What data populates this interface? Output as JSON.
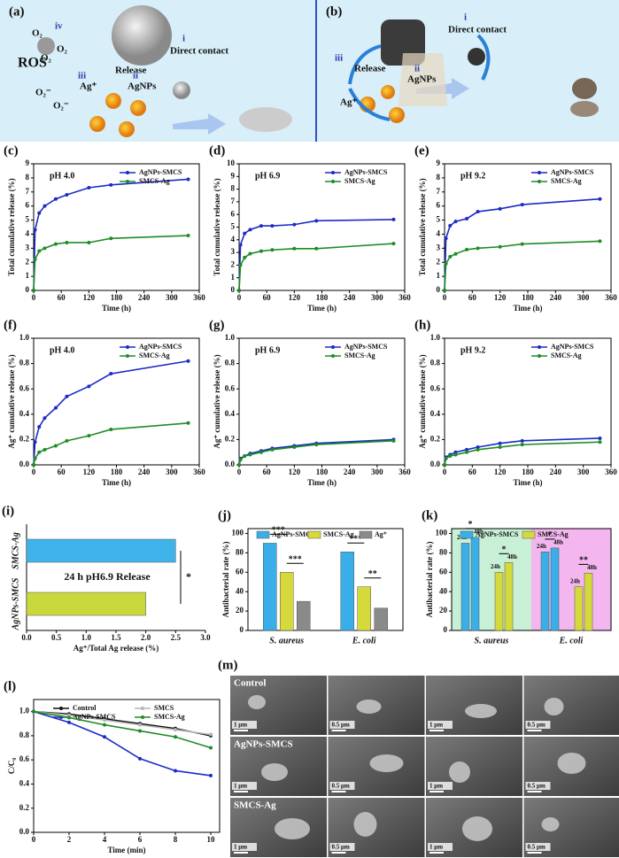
{
  "schematic": {
    "a": {
      "label": "(a)",
      "iv": "iv",
      "o2": "O₂",
      "o2r": "O₂⁻",
      "ros": "ROS",
      "release": "Release",
      "i": "i",
      "direct": "Direct contact",
      "ii": "ii",
      "agnps": "AgNPs",
      "iii": "iii",
      "agp": "Ag⁺"
    },
    "b": {
      "label": "(b)",
      "i": "i",
      "direct": "Direct contact",
      "release": "Release",
      "iii": "iii",
      "ii": "ii",
      "agnps": "AgNPs",
      "agp": "Ag⁺"
    }
  },
  "chart_data": [
    {
      "type": "line",
      "panel_label": "(c)",
      "annotation": "pH 4.0",
      "xlabel": "Time (h)",
      "ylabel": "Total cumulative release (%)",
      "x": [
        0,
        3,
        12,
        24,
        48,
        72,
        120,
        168,
        336
      ],
      "xlim": [
        0,
        360
      ],
      "xticks": [
        0,
        60,
        120,
        180,
        240,
        300,
        360
      ],
      "ylim": [
        0,
        9
      ],
      "yticks": [
        0,
        1,
        2,
        3,
        4,
        5,
        6,
        7,
        8,
        9
      ],
      "legend": "upper right",
      "series": [
        {
          "name": "AgNPs-SMCS",
          "color": "#1c2bc4",
          "values": [
            0,
            4.3,
            5.5,
            6.0,
            6.5,
            6.8,
            7.3,
            7.5,
            7.9
          ]
        },
        {
          "name": "SMCS-Ag",
          "color": "#1e8c24",
          "values": [
            0,
            2.2,
            2.8,
            3.0,
            3.3,
            3.4,
            3.4,
            3.7,
            3.9
          ]
        }
      ]
    },
    {
      "type": "line",
      "panel_label": "(d)",
      "annotation": "pH 6.9",
      "xlabel": "Time (h)",
      "ylabel": "Total cumulative release (%)",
      "x": [
        0,
        3,
        12,
        24,
        48,
        72,
        120,
        168,
        336
      ],
      "xlim": [
        0,
        360
      ],
      "xticks": [
        0,
        60,
        120,
        180,
        240,
        300,
        360
      ],
      "ylim": [
        0,
        10
      ],
      "yticks": [
        0,
        1,
        2,
        3,
        4,
        5,
        6,
        7,
        8,
        9,
        10
      ],
      "legend": "upper right",
      "series": [
        {
          "name": "AgNPs-SMCS",
          "color": "#1c2bc4",
          "values": [
            0,
            3.6,
            4.5,
            4.8,
            5.1,
            5.1,
            5.2,
            5.5,
            5.6
          ]
        },
        {
          "name": "SMCS-Ag",
          "color": "#1e8c24",
          "values": [
            0,
            2.0,
            2.6,
            2.9,
            3.1,
            3.2,
            3.3,
            3.3,
            3.7
          ]
        }
      ]
    },
    {
      "type": "line",
      "panel_label": "(e)",
      "annotation": "pH 9.2",
      "xlabel": "Time (h)",
      "ylabel": "Total cumulative release (%)",
      "x": [
        0,
        3,
        12,
        24,
        48,
        72,
        120,
        168,
        336
      ],
      "xlim": [
        0,
        360
      ],
      "xticks": [
        0,
        60,
        120,
        180,
        240,
        300,
        360
      ],
      "ylim": [
        0,
        9
      ],
      "yticks": [
        0,
        1,
        2,
        3,
        4,
        5,
        6,
        7,
        8,
        9
      ],
      "legend": "upper right",
      "series": [
        {
          "name": "AgNPs-SMCS",
          "color": "#1c2bc4",
          "values": [
            0,
            3.7,
            4.6,
            4.9,
            5.1,
            5.6,
            5.8,
            6.1,
            6.5
          ]
        },
        {
          "name": "SMCS-Ag",
          "color": "#1e8c24",
          "values": [
            0,
            1.9,
            2.4,
            2.6,
            2.9,
            3.0,
            3.1,
            3.3,
            3.5
          ]
        }
      ]
    },
    {
      "type": "line",
      "panel_label": "(f)",
      "annotation": "pH 4.0",
      "xlabel": "Time (h)",
      "ylabel": "Ag⁺ cumulative release (%)",
      "x": [
        0,
        3,
        12,
        24,
        48,
        72,
        120,
        168,
        336
      ],
      "xlim": [
        0,
        360
      ],
      "xticks": [
        0,
        60,
        120,
        180,
        240,
        300,
        360
      ],
      "ylim": [
        0,
        1
      ],
      "yticks": [
        {
          "value": 0,
          "label": "0.0"
        },
        0.2,
        0.4,
        0.6,
        0.8,
        {
          "value": 1,
          "label": "1.0"
        }
      ],
      "legend": "upper right",
      "series": [
        {
          "name": "AgNPs-SMCS",
          "color": "#1c2bc4",
          "values": [
            0,
            0.18,
            0.3,
            0.37,
            0.45,
            0.54,
            0.62,
            0.72,
            0.82
          ]
        },
        {
          "name": "SMCS-Ag",
          "color": "#1e8c24",
          "values": [
            0,
            0.05,
            0.1,
            0.12,
            0.15,
            0.19,
            0.23,
            0.28,
            0.33
          ]
        }
      ]
    },
    {
      "type": "line",
      "panel_label": "(g)",
      "annotation": "pH 6.9",
      "xlabel": "Time (h)",
      "ylabel": "Ag⁺ cumulative release (%)",
      "x": [
        0,
        3,
        12,
        24,
        48,
        72,
        120,
        168,
        336
      ],
      "xlim": [
        0,
        360
      ],
      "xticks": [
        0,
        60,
        120,
        180,
        240,
        300,
        360
      ],
      "ylim": [
        0,
        1
      ],
      "yticks": [
        {
          "value": 0,
          "label": "0.0"
        },
        0.2,
        0.4,
        0.6,
        0.8,
        {
          "value": 1,
          "label": "1.0"
        }
      ],
      "legend": "upper right",
      "series": [
        {
          "name": "AgNPs-SMCS",
          "color": "#1c2bc4",
          "values": [
            0,
            0.05,
            0.07,
            0.09,
            0.11,
            0.13,
            0.15,
            0.17,
            0.2
          ]
        },
        {
          "name": "SMCS-Ag",
          "color": "#1e8c24",
          "values": [
            0,
            0.04,
            0.07,
            0.08,
            0.1,
            0.12,
            0.14,
            0.16,
            0.19
          ]
        }
      ]
    },
    {
      "type": "line",
      "panel_label": "(h)",
      "annotation": "pH 9.2",
      "xlabel": "Time (h)",
      "ylabel": "Ag⁺ cumulative release (%)",
      "x": [
        0,
        3,
        12,
        24,
        48,
        72,
        120,
        168,
        336
      ],
      "xlim": [
        0,
        360
      ],
      "xticks": [
        0,
        60,
        120,
        180,
        240,
        300,
        360
      ],
      "ylim": [
        0,
        1
      ],
      "yticks": [
        {
          "value": 0,
          "label": "0.0"
        },
        0.2,
        0.4,
        0.6,
        0.8,
        {
          "value": 1,
          "label": "1.0"
        }
      ],
      "legend": "upper right",
      "series": [
        {
          "name": "AgNPs-SMCS",
          "color": "#1c2bc4",
          "values": [
            0,
            0.06,
            0.08,
            0.1,
            0.12,
            0.14,
            0.17,
            0.19,
            0.21
          ]
        },
        {
          "name": "SMCS-Ag",
          "color": "#1e8c24",
          "values": [
            0,
            0.05,
            0.07,
            0.08,
            0.1,
            0.12,
            0.14,
            0.16,
            0.18
          ]
        }
      ]
    },
    {
      "type": "barh",
      "panel_label": "(i)",
      "annotations": [
        "24 h  pH6.9 Release",
        "*"
      ],
      "xlabel": "Ag⁺/Total Ag release (%)",
      "categories": [
        "SMCS-Ag",
        "AgNPs-SMCS"
      ],
      "values": [
        2.5,
        2.0
      ],
      "colors": [
        "#3fb4ea",
        "#c9d83c"
      ],
      "xlim": [
        0,
        3
      ],
      "xticks": [
        {
          "value": 0,
          "label": "0.0"
        },
        0.5,
        {
          "value": 1,
          "label": "1.0"
        },
        1.5,
        {
          "value": 2,
          "label": "2.0"
        },
        2.5,
        {
          "value": 3,
          "label": "3.0"
        }
      ]
    },
    {
      "type": "bar",
      "panel_label": "(j)",
      "ylabel": "Antibacterial rate (%)",
      "annotations": [
        "***",
        "***",
        "***",
        "**"
      ],
      "categories": [
        "S. aureus",
        "E. coli"
      ],
      "ylim": [
        0,
        105
      ],
      "yticks": [
        0,
        20,
        40,
        60,
        80,
        100
      ],
      "legend": "upper",
      "series": [
        {
          "name": "AgNPs-SMCS",
          "color": "#3aaee8",
          "values": [
            90,
            81
          ]
        },
        {
          "name": "SMCS-Ag",
          "color": "#d5d93c",
          "values": [
            60,
            45
          ]
        },
        {
          "name": "Ag⁺",
          "color": "#8a8a8a",
          "values": [
            30,
            23
          ]
        }
      ]
    },
    {
      "type": "bar",
      "panel_label": "(k)",
      "ylabel": "Antibacterial rate (%)",
      "annotations": [
        "*",
        "*",
        "*",
        "**"
      ],
      "categories": [
        "S. aureus",
        "E. coli"
      ],
      "band_colors": [
        "#c8f0d6",
        "#f3b6ef"
      ],
      "subgroups": [
        "24h",
        "48h"
      ],
      "ylim": [
        0,
        105
      ],
      "yticks": [
        0,
        20,
        40,
        60,
        80,
        100
      ],
      "legend": "upper",
      "series": [
        {
          "name": "AgNPs-SMCS",
          "color": "#3aaee8",
          "values": [
            [
              90,
              96
            ],
            [
              81,
              85
            ]
          ]
        },
        {
          "name": "SMCS-Ag",
          "color": "#d5d93c",
          "values": [
            [
              60,
              70
            ],
            [
              45,
              59
            ]
          ]
        }
      ]
    },
    {
      "type": "line",
      "panel_label": "(l)",
      "xlabel": "Time (min)",
      "ylabel": "C/C₀",
      "x": [
        0,
        2,
        4,
        6,
        8,
        10
      ],
      "xlim": [
        0,
        10.5
      ],
      "xticks": [
        0,
        2,
        4,
        6,
        8,
        10
      ],
      "ylim": [
        0,
        1.1
      ],
      "yticks": [
        {
          "value": 0,
          "label": "0.0"
        },
        0.2,
        0.4,
        0.6,
        0.8,
        {
          "value": 1,
          "label": "1.0"
        }
      ],
      "legend": "upper",
      "series": [
        {
          "name": "Control",
          "color": "#111111",
          "values": [
            1,
            0.98,
            0.94,
            0.9,
            0.86,
            0.8
          ]
        },
        {
          "name": "SMCS",
          "color": "#b5b5b5",
          "values": [
            1,
            0.97,
            0.93,
            0.89,
            0.85,
            0.81
          ]
        },
        {
          "name": "AgNPs-SMCS",
          "color": "#1c2bc4",
          "values": [
            1,
            0.91,
            0.79,
            0.61,
            0.51,
            0.47
          ]
        },
        {
          "name": "SMCS-Ag",
          "color": "#1e8c24",
          "values": [
            1,
            0.95,
            0.89,
            0.84,
            0.79,
            0.7
          ]
        }
      ]
    }
  ],
  "sem": {
    "label": "(m)",
    "row_labels": [
      "Control",
      "AgNPs-SMCS",
      "SMCS-Ag"
    ],
    "scale_bars": [
      "1 μm",
      "0.5 μm",
      "1 μm",
      "0.5 μm",
      "1 μm",
      "0.5 μm",
      "1 μm",
      "0.5 μm",
      "1 μm",
      "0.5 μm",
      "1 μm",
      "0.5 μm"
    ]
  }
}
